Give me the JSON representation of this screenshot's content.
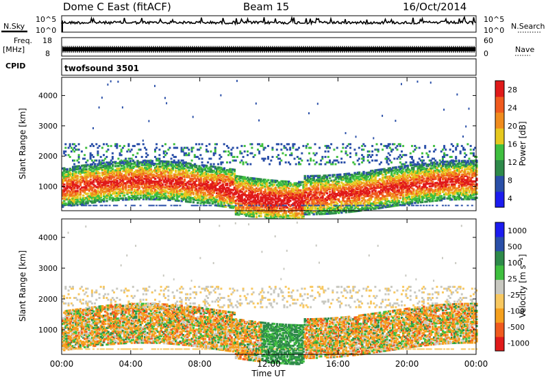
{
  "header": {
    "station": "Dome C East (fitACF)",
    "beam": "Beam 15",
    "date": "16/Oct/2014"
  },
  "strip_labels": {
    "nsky": "N.Sky",
    "nsearch": "N.Search",
    "freq": "Freq.",
    "freq_unit": "[MHz]",
    "nave": "Nave",
    "cpid": "CPID",
    "cpid_value": "twofsound 3501"
  },
  "chart_data": [
    {
      "type": "line",
      "name": "noise",
      "left_ticks": [
        "10^5",
        "10^0"
      ],
      "right_ticks": [
        "10^5",
        "10^0"
      ],
      "description_values": "noise sky level near 10^5 throughout day"
    },
    {
      "type": "line",
      "name": "frequency_nave",
      "left_ticks": [
        "18",
        "8"
      ],
      "right_ticks": [
        "60",
        "0"
      ],
      "freq_range": [
        8,
        18
      ],
      "nave_range": [
        0,
        60
      ]
    },
    {
      "type": "heatmap",
      "name": "power",
      "ylabel": "Slant Range [km]",
      "ylim": [
        200,
        4600
      ],
      "yticks": [
        1000,
        2000,
        3000,
        4000
      ],
      "colorbar_label": "Power [dB]",
      "colorbar_ticks": [
        "28",
        "24",
        "20",
        "16",
        "12",
        "8",
        "4"
      ],
      "colors": [
        "#1c1cf0",
        "#2a4fa8",
        "#2e8a4a",
        "#3fbf3f",
        "#e6c81e",
        "#f08c1e",
        "#f05a1e",
        "#e01a1a"
      ]
    },
    {
      "type": "heatmap",
      "name": "velocity",
      "ylabel": "Slant Range [km]",
      "ylim": [
        200,
        4600
      ],
      "yticks": [
        1000,
        2000,
        3000,
        4000
      ],
      "colorbar_label": "Velocity [m s⁻¹]",
      "colorbar_ticks": [
        "1000",
        "500",
        "100",
        "25",
        "-25",
        "-100",
        "-500",
        "-1000"
      ],
      "colors": [
        "#e01a1a",
        "#f05a1e",
        "#f5a01e",
        "#f8c860",
        "#c8c8c0",
        "#3fbf3f",
        "#2e8a4a",
        "#2a4fa8",
        "#1c1cf0"
      ]
    }
  ],
  "x_axis": {
    "label": "Time UT",
    "ticks": [
      "00:00",
      "04:00",
      "08:00",
      "12:00",
      "16:00",
      "20:00",
      "00:00"
    ]
  }
}
